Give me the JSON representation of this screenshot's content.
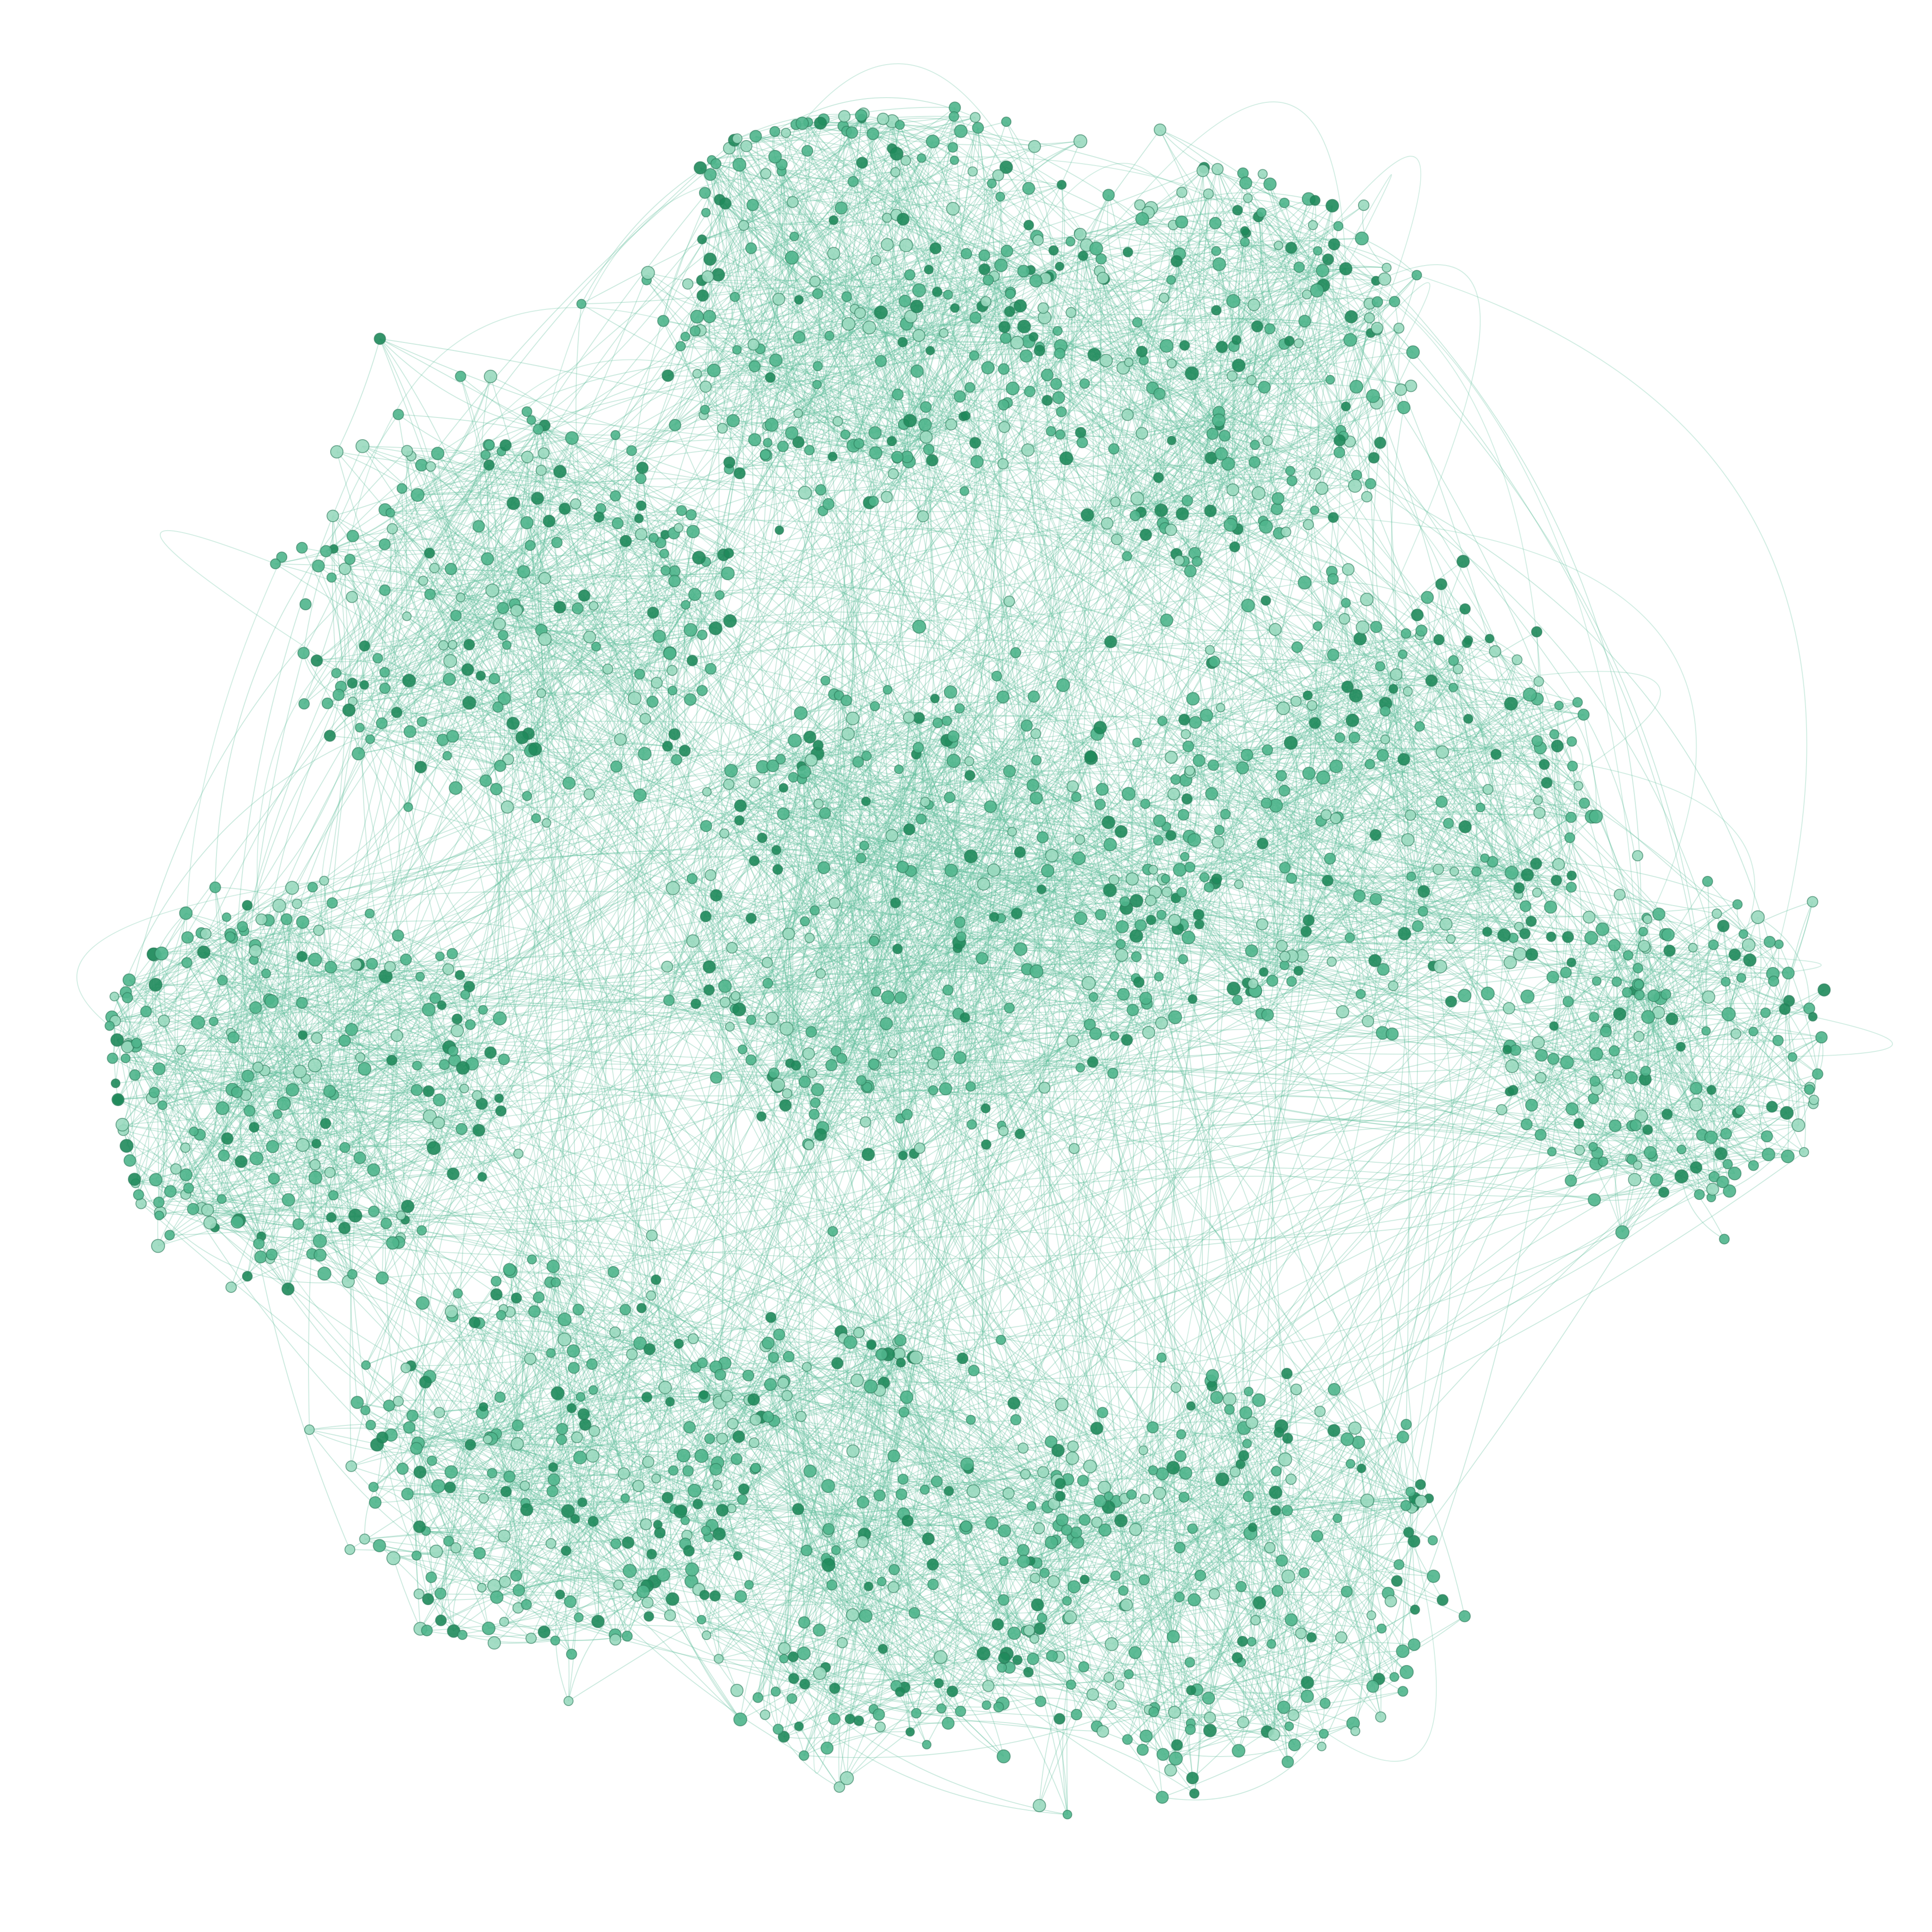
{
  "graph": {
    "kind": "network-diagram",
    "layout": "force-directed",
    "labels_visible": false,
    "palette": {
      "background": "#ffffff",
      "edge": "#5fbf9b",
      "node_fill_light": "#9ad9bf",
      "node_fill_mid": "#4fb58c",
      "node_fill_dark": "#1f8a5b",
      "node_stroke": "#2c7a5a"
    },
    "communities": [
      {
        "name": "cluster-top-center",
        "node_count": 230
      },
      {
        "name": "cluster-top-right",
        "node_count": 210
      },
      {
        "name": "cluster-upper-left",
        "node_count": 200
      },
      {
        "name": "cluster-left",
        "node_count": 220
      },
      {
        "name": "cluster-center",
        "node_count": 260
      },
      {
        "name": "cluster-right",
        "node_count": 230
      },
      {
        "name": "cluster-far-right",
        "node_count": 160
      },
      {
        "name": "cluster-lower-left",
        "node_count": 200
      },
      {
        "name": "cluster-bottom-center",
        "node_count": 220
      },
      {
        "name": "cluster-bottom-right",
        "node_count": 200
      }
    ]
  }
}
